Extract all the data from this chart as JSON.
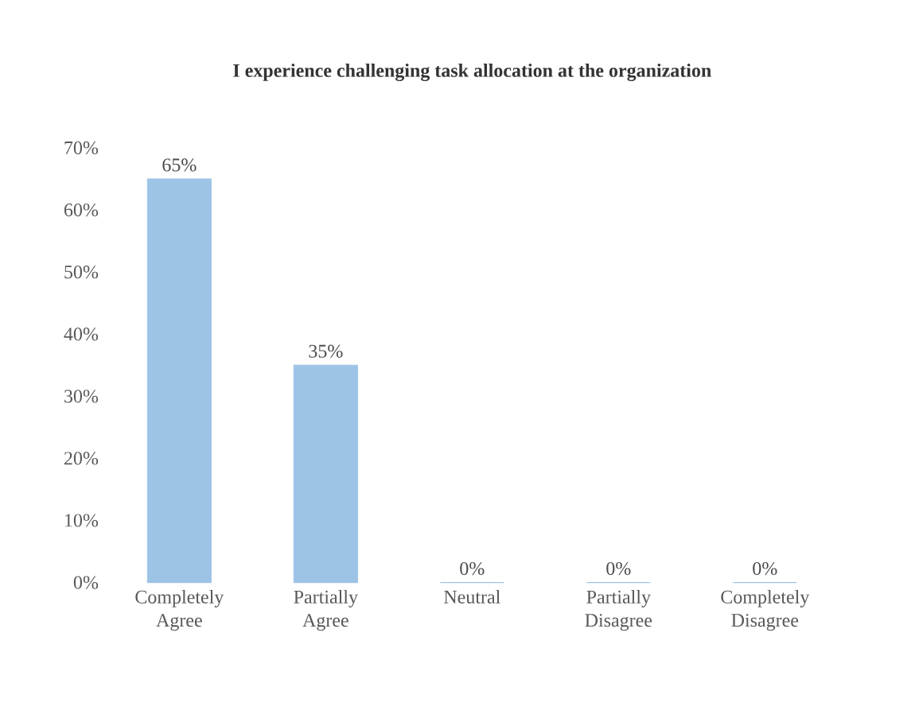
{
  "chart_data": {
    "type": "bar",
    "title": "I experience challenging task allocation at the organization",
    "categories": [
      "Completely Agree",
      "Partially Agree",
      "Neutral",
      "Partially Disagree",
      "Completely Disagree"
    ],
    "values": [
      65,
      35,
      0,
      0,
      0
    ],
    "value_labels": [
      "65%",
      "35%",
      "0%",
      "0%",
      "0%"
    ],
    "color": "#9dc3e6",
    "ylim": [
      0,
      70
    ],
    "yticks": [
      {
        "value": 0,
        "label": "0%"
      },
      {
        "value": 10,
        "label": "10%"
      },
      {
        "value": 20,
        "label": "20%"
      },
      {
        "value": 30,
        "label": "30%"
      },
      {
        "value": 40,
        "label": "40%"
      },
      {
        "value": 50,
        "label": "50%"
      },
      {
        "value": 60,
        "label": "60%"
      },
      {
        "value": 70,
        "label": "70%"
      }
    ],
    "grid": false
  }
}
